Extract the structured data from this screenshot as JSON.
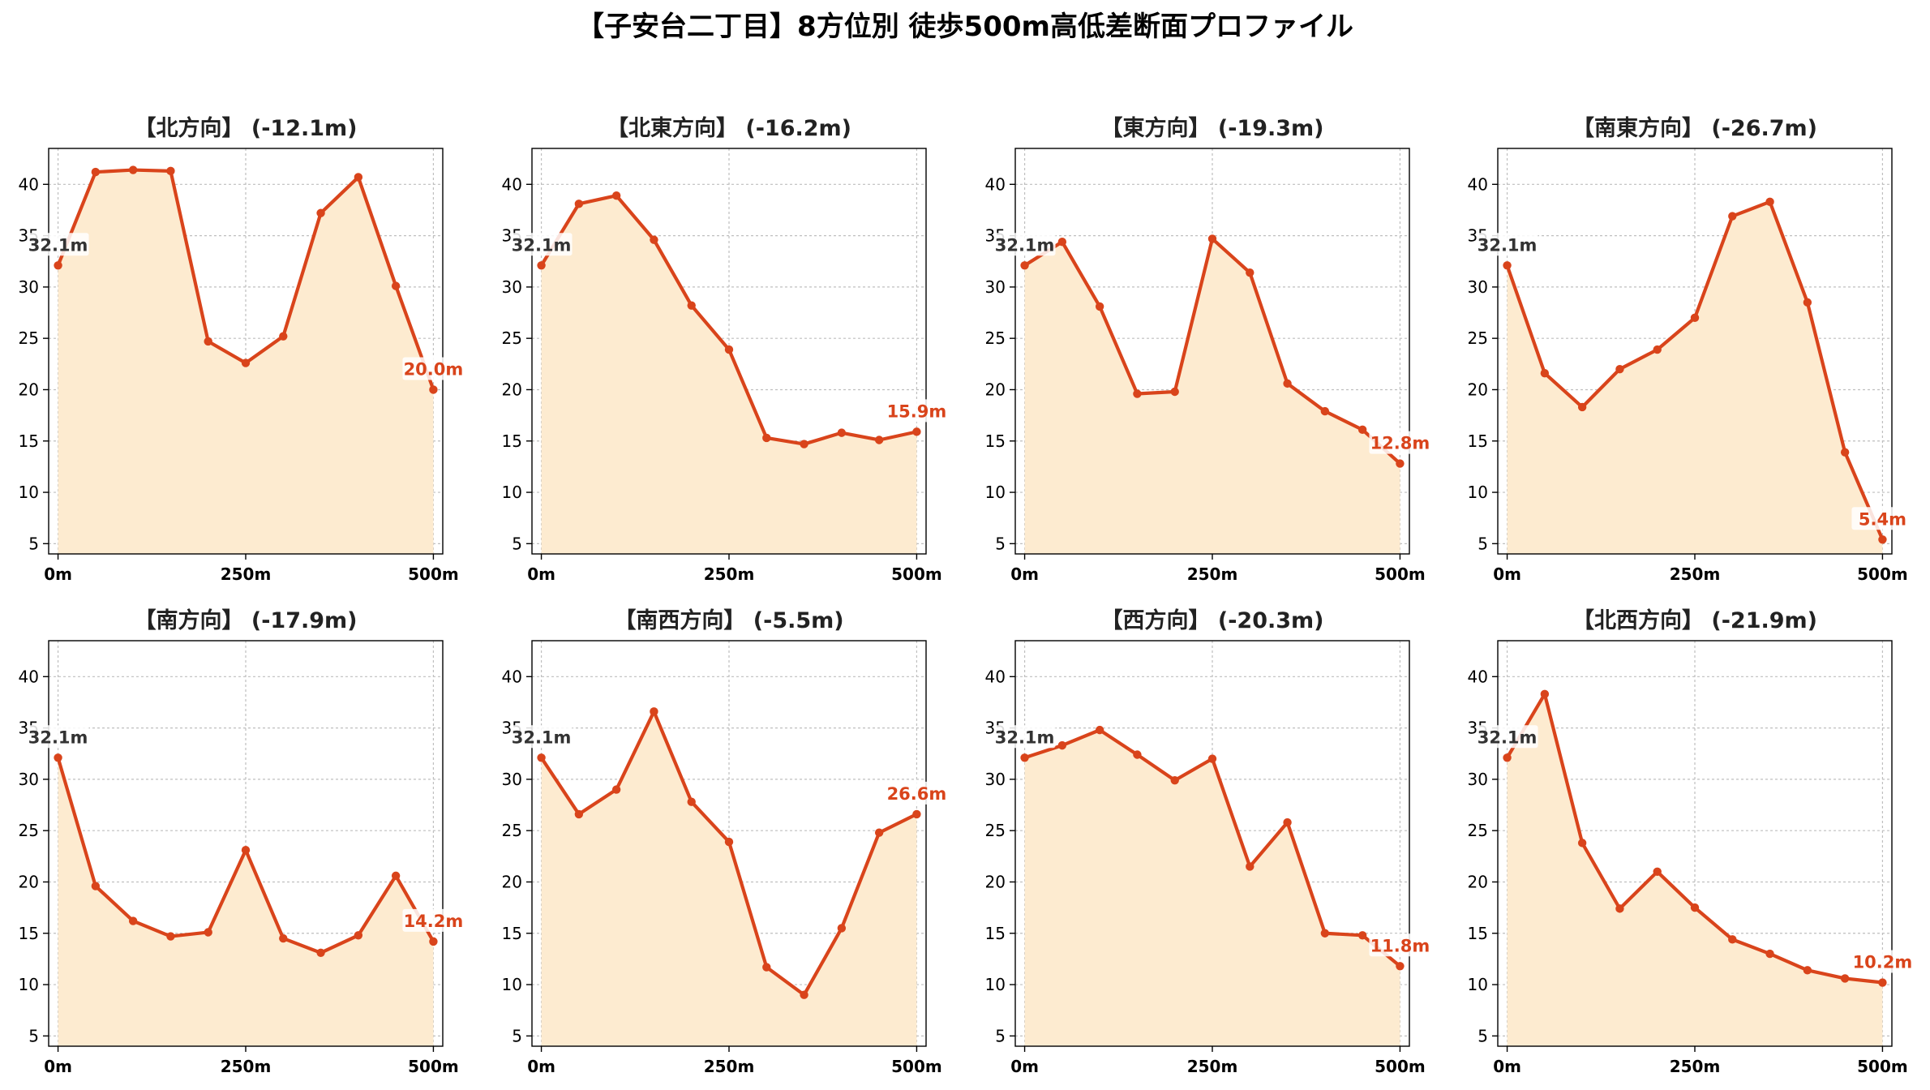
{
  "title": "【子安台二丁目】8方位別 徒歩500m高低差断面プロファイル",
  "colors": {
    "line": "#d9441b",
    "fill": "#fdebd0",
    "start_label": "#333333",
    "end_label": "#d9441b"
  },
  "chart_data": [
    {
      "type": "area",
      "title": "【北方向】 (-12.1m)",
      "x": [
        0,
        50,
        100,
        150,
        200,
        250,
        300,
        350,
        400,
        450,
        500
      ],
      "values": [
        32.1,
        41.2,
        41.4,
        41.3,
        24.7,
        22.6,
        25.2,
        37.2,
        40.7,
        30.1,
        20.0
      ],
      "start_label": "32.1m",
      "end_label": "20.0m",
      "xticks": [
        "0m",
        "250m",
        "500m"
      ],
      "ylim": [
        4,
        43.5
      ],
      "yticks": [
        5,
        10,
        15,
        20,
        25,
        30,
        35,
        40
      ],
      "grid": true
    },
    {
      "type": "area",
      "title": "【北東方向】 (-16.2m)",
      "x": [
        0,
        50,
        100,
        150,
        200,
        250,
        300,
        350,
        400,
        450,
        500
      ],
      "values": [
        32.1,
        38.1,
        38.9,
        34.6,
        28.2,
        23.9,
        15.3,
        14.7,
        15.8,
        15.1,
        15.9
      ],
      "start_label": "32.1m",
      "end_label": "15.9m",
      "xticks": [
        "0m",
        "250m",
        "500m"
      ],
      "ylim": [
        4,
        43.5
      ],
      "yticks": [
        5,
        10,
        15,
        20,
        25,
        30,
        35,
        40
      ],
      "grid": true
    },
    {
      "type": "area",
      "title": "【東方向】 (-19.3m)",
      "x": [
        0,
        50,
        100,
        150,
        200,
        250,
        300,
        350,
        400,
        450,
        500
      ],
      "values": [
        32.1,
        34.4,
        28.1,
        19.6,
        19.8,
        34.7,
        31.4,
        20.6,
        17.9,
        16.1,
        12.8
      ],
      "start_label": "32.1m",
      "end_label": "12.8m",
      "xticks": [
        "0m",
        "250m",
        "500m"
      ],
      "ylim": [
        4,
        43.5
      ],
      "yticks": [
        5,
        10,
        15,
        20,
        25,
        30,
        35,
        40
      ],
      "grid": true
    },
    {
      "type": "area",
      "title": "【南東方向】 (-26.7m)",
      "x": [
        0,
        50,
        100,
        150,
        200,
        250,
        300,
        350,
        400,
        450,
        500
      ],
      "values": [
        32.1,
        21.6,
        18.3,
        22.0,
        23.9,
        27.0,
        36.9,
        38.3,
        28.5,
        13.9,
        5.4
      ],
      "start_label": "32.1m",
      "end_label": "5.4m",
      "xticks": [
        "0m",
        "250m",
        "500m"
      ],
      "ylim": [
        4,
        43.5
      ],
      "yticks": [
        5,
        10,
        15,
        20,
        25,
        30,
        35,
        40
      ],
      "grid": true
    },
    {
      "type": "area",
      "title": "【南方向】 (-17.9m)",
      "x": [
        0,
        50,
        100,
        150,
        200,
        250,
        300,
        350,
        400,
        450,
        500
      ],
      "values": [
        32.1,
        19.6,
        16.2,
        14.7,
        15.1,
        23.1,
        14.5,
        13.1,
        14.8,
        20.6,
        14.2
      ],
      "start_label": "32.1m",
      "end_label": "14.2m",
      "xticks": [
        "0m",
        "250m",
        "500m"
      ],
      "ylim": [
        4,
        43.5
      ],
      "yticks": [
        5,
        10,
        15,
        20,
        25,
        30,
        35,
        40
      ],
      "grid": true
    },
    {
      "type": "area",
      "title": "【南西方向】 (-5.5m)",
      "x": [
        0,
        50,
        100,
        150,
        200,
        250,
        300,
        350,
        400,
        450,
        500
      ],
      "values": [
        32.1,
        26.6,
        29.0,
        36.6,
        27.8,
        23.9,
        11.7,
        9.0,
        15.5,
        24.8,
        26.6
      ],
      "start_label": "32.1m",
      "end_label": "26.6m",
      "xticks": [
        "0m",
        "250m",
        "500m"
      ],
      "ylim": [
        4,
        43.5
      ],
      "yticks": [
        5,
        10,
        15,
        20,
        25,
        30,
        35,
        40
      ],
      "grid": true
    },
    {
      "type": "area",
      "title": "【西方向】 (-20.3m)",
      "x": [
        0,
        50,
        100,
        150,
        200,
        250,
        300,
        350,
        400,
        450,
        500
      ],
      "values": [
        32.1,
        33.3,
        34.8,
        32.4,
        29.9,
        32.0,
        21.5,
        25.8,
        15.0,
        14.8,
        11.8
      ],
      "start_label": "32.1m",
      "end_label": "11.8m",
      "xticks": [
        "0m",
        "250m",
        "500m"
      ],
      "ylim": [
        4,
        43.5
      ],
      "yticks": [
        5,
        10,
        15,
        20,
        25,
        30,
        35,
        40
      ],
      "grid": true
    },
    {
      "type": "area",
      "title": "【北西方向】 (-21.9m)",
      "x": [
        0,
        50,
        100,
        150,
        200,
        250,
        300,
        350,
        400,
        450,
        500
      ],
      "values": [
        32.1,
        38.3,
        23.8,
        17.4,
        21.0,
        17.5,
        14.4,
        13.0,
        11.4,
        10.6,
        10.2
      ],
      "start_label": "32.1m",
      "end_label": "10.2m",
      "xticks": [
        "0m",
        "250m",
        "500m"
      ],
      "ylim": [
        4,
        43.5
      ],
      "yticks": [
        5,
        10,
        15,
        20,
        25,
        30,
        35,
        40
      ],
      "grid": true
    }
  ]
}
